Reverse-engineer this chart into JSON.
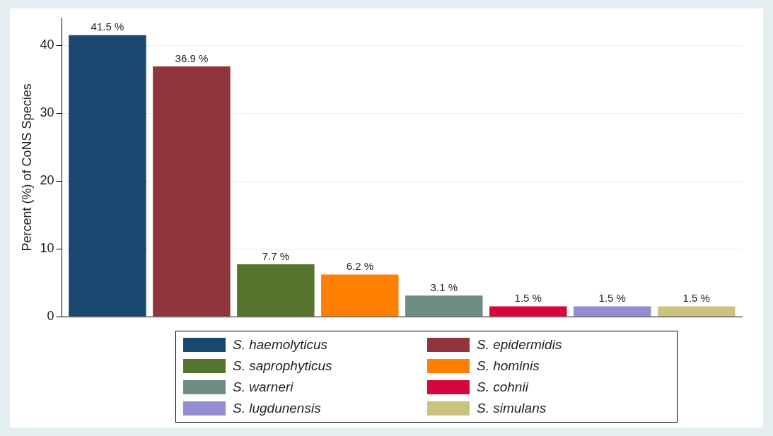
{
  "chart_data": {
    "type": "bar",
    "ylabel": "Percent (%) of CoNS Species",
    "categories": [
      null
    ],
    "series": [
      {
        "name": "S. haemolyticus",
        "color": "#1a476f",
        "values": [
          41.5
        ],
        "value_labels": [
          "41.5 %"
        ]
      },
      {
        "name": "S. epidermidis",
        "color": "#90353b",
        "values": [
          36.9
        ],
        "value_labels": [
          "36.9 %"
        ]
      },
      {
        "name": "S. saprophyticus",
        "color": "#55752f",
        "values": [
          7.7
        ],
        "value_labels": [
          "7.7 %"
        ]
      },
      {
        "name": "S. hominis",
        "color": "#ff7f00",
        "values": [
          6.2
        ],
        "value_labels": [
          "6.2 %"
        ]
      },
      {
        "name": "S. warneri",
        "color": "#6e8e84",
        "values": [
          3.1
        ],
        "value_labels": [
          "3.1 %"
        ]
      },
      {
        "name": "S. cohnii",
        "color": "#d6083b",
        "values": [
          1.5
        ],
        "value_labels": [
          "1.5 %"
        ]
      },
      {
        "name": "S. lugdunensis",
        "color": "#938dd2",
        "values": [
          1.5
        ],
        "value_labels": [
          "1.5 %"
        ]
      },
      {
        "name": "S. simulans",
        "color": "#cac27e",
        "values": [
          1.5
        ],
        "value_labels": [
          "1.5 %"
        ]
      }
    ],
    "ylim": [
      0,
      44
    ],
    "yticks": [
      0,
      10,
      20,
      30,
      40
    ],
    "grid": "y",
    "legend": "bottom",
    "tick_labels": "y"
  }
}
